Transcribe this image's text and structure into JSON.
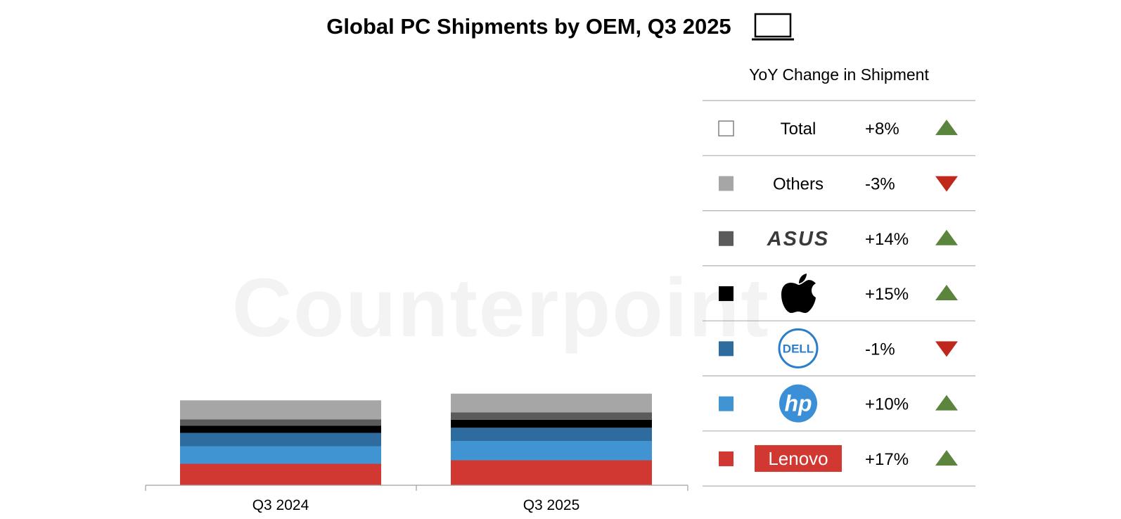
{
  "chart_data": {
    "type": "bar",
    "stacked": true,
    "title": "Global PC Shipments by OEM, Q3 2025",
    "title_icon": "laptop-icon",
    "categories": [
      "Q3 2024",
      "Q3 2025"
    ],
    "series": [
      {
        "name": "Lenovo",
        "color": "#d13831",
        "values": [
          122,
          142
        ]
      },
      {
        "name": "HP",
        "color": "#4194d2",
        "values": [
          100,
          110
        ]
      },
      {
        "name": "Dell",
        "color": "#2e6b9e",
        "values": [
          76,
          75
        ]
      },
      {
        "name": "Apple",
        "color": "#000000",
        "values": [
          40,
          46
        ]
      },
      {
        "name": "ASUS",
        "color": "#5b5b5b",
        "values": [
          36,
          42
        ]
      },
      {
        "name": "Others",
        "color": "#a6a6a6",
        "values": [
          109,
          106
        ]
      }
    ],
    "legend": {
      "header": "YoY Change in Shipment",
      "placement": "right",
      "rows": [
        {
          "key": "total",
          "label": "Total",
          "swatch": "#ffffff",
          "change": "+8%",
          "direction": "up"
        },
        {
          "key": "others",
          "label": "Others",
          "swatch": "#a6a6a6",
          "change": "-3%",
          "direction": "down"
        },
        {
          "key": "asus",
          "label": "ASUS",
          "logo": "asus-logo",
          "swatch": "#5b5b5b",
          "change": "+14%",
          "direction": "up"
        },
        {
          "key": "apple",
          "label": "Apple",
          "logo": "apple-logo",
          "swatch": "#000000",
          "change": "+15%",
          "direction": "up"
        },
        {
          "key": "dell",
          "label": "DELL",
          "logo": "dell-logo",
          "swatch": "#2e6b9e",
          "change": "-1%",
          "direction": "down"
        },
        {
          "key": "hp",
          "label": "hp",
          "logo": "hp-logo",
          "swatch": "#4194d2",
          "change": "+10%",
          "direction": "up"
        },
        {
          "key": "lenovo",
          "label": "Lenovo",
          "logo": "lenovo-logo",
          "swatch": "#d13831",
          "change": "+17%",
          "direction": "up"
        }
      ]
    },
    "colors": {
      "up": "#5b843d",
      "down": "#c0281c"
    },
    "grid": false
  },
  "watermark": "Counterpoint"
}
